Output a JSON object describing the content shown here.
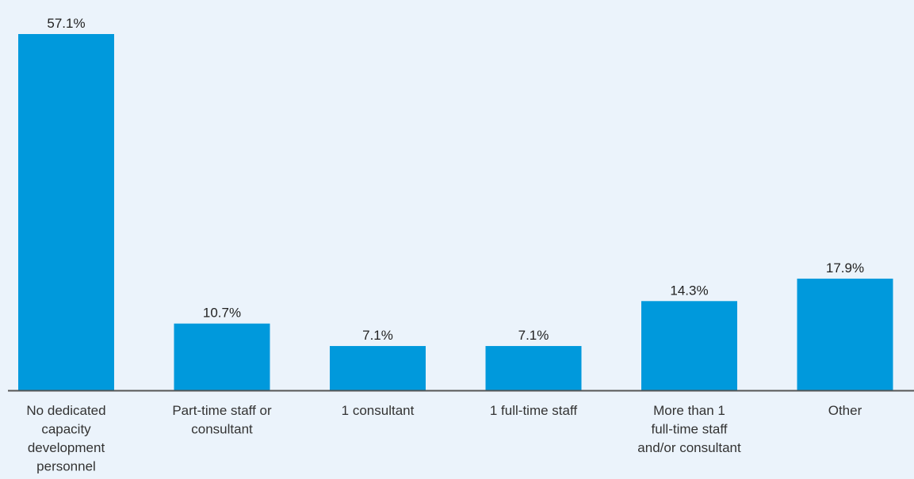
{
  "chart_data": {
    "type": "bar",
    "title": "",
    "xlabel": "",
    "ylabel": "",
    "ylim": [
      0,
      60
    ],
    "grid": false,
    "categories": [
      "No dedicated capacity development personnel",
      "Part-time staff or consultant",
      "1 consultant",
      "1 full-time staff",
      "More than 1 full-time staff and/or consultant",
      "Other"
    ],
    "category_lines": [
      [
        "No dedicated",
        "capacity",
        "development",
        "personnel"
      ],
      [
        "Part-time staff or",
        "consultant"
      ],
      [
        "1 consultant"
      ],
      [
        "1 full-time staff"
      ],
      [
        "More than 1",
        "full-time staff",
        "and/or consultant"
      ],
      [
        "Other"
      ]
    ],
    "values": [
      57.1,
      10.7,
      7.1,
      7.1,
      14.3,
      17.9
    ],
    "value_labels": [
      "57.1%",
      "10.7%",
      "7.1%",
      "7.1%",
      "14.3%",
      "17.9%"
    ],
    "colors": {
      "bar": "#0099dc",
      "axis": "#555555",
      "title": "#1a9ad7",
      "background": "#ebf3fb"
    }
  }
}
